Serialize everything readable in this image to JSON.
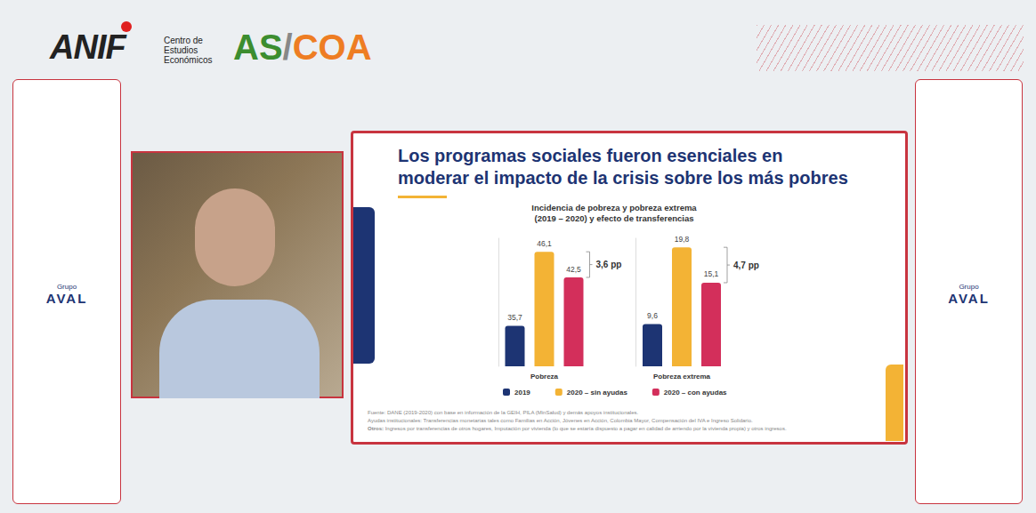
{
  "header": {
    "logo_anif": "ANIF",
    "anif_subtitle": [
      "Centro de",
      "Estudios",
      "Económicos"
    ],
    "logo_ascoa": "AS/COA"
  },
  "side_panels": [
    {
      "top": "Grupo",
      "main": "AVAL"
    },
    {
      "top": "Grupo",
      "main": "AVAL"
    }
  ],
  "slide": {
    "title": [
      "Los programas sociales fueron esenciales en",
      "moderar el impacto de la crisis sobre los más pobres"
    ],
    "chart_title": [
      "Incidencia de pobreza y pobreza extrema",
      "(2019 – 2020) y efecto de transferencias"
    ],
    "footnotes": [
      {
        "text": "Fuente: DANE (2019-2020) con base en información de la GEIH, PILA (MinSalud) y demás apoyos institucionales."
      },
      {
        "text": "Ayudas institucionales: Transferencias monetarias tales como Familias en Acción, Jóvenes en Acción, Colombia Mayor, Compensación del IVA e Ingreso Solidario."
      },
      {
        "lead": "Otros:",
        "text": "Ingresos por transferencias de otros hogares, Imputación por vivienda (lo que se estaría dispuesto a pagar en calidad de arriendo por la vivienda propia) y otros ingresos."
      }
    ]
  },
  "chart_data": [
    {
      "type": "bar",
      "categories": [
        "Pobreza"
      ],
      "series": [
        {
          "name": "2019",
          "color": "#1d3473",
          "values": [
            35.7
          ],
          "value_labels": [
            "35,7"
          ]
        },
        {
          "name": "2020 – sin ayudas",
          "color": "#f3b335",
          "values": [
            46.1
          ],
          "value_labels": [
            "46,1"
          ]
        },
        {
          "name": "2020 – con ayudas",
          "color": "#d32f5b",
          "values": [
            42.5
          ],
          "value_labels": [
            "42,5"
          ]
        }
      ],
      "ylim": [
        30,
        48
      ],
      "grid": false,
      "data_labels": true,
      "tick_labels": "x",
      "legend": "bottom",
      "annotations": [
        {
          "label": "3,6 pp",
          "value": 3.6,
          "between": [
            "2020 – sin ayudas",
            "2020 – con ayudas"
          ]
        }
      ]
    },
    {
      "type": "bar",
      "categories": [
        "Pobreza extrema"
      ],
      "series": [
        {
          "name": "2019",
          "color": "#1d3473",
          "values": [
            9.6
          ],
          "value_labels": [
            "9,6"
          ]
        },
        {
          "name": "2020 – sin ayudas",
          "color": "#f3b335",
          "values": [
            19.8
          ],
          "value_labels": [
            "19,8"
          ]
        },
        {
          "name": "2020 – con ayudas",
          "color": "#d32f5b",
          "values": [
            15.1
          ],
          "value_labels": [
            "15,1"
          ]
        }
      ],
      "ylim": [
        4,
        21
      ],
      "grid": false,
      "data_labels": true,
      "tick_labels": "x",
      "annotations": [
        {
          "label": "4,7 pp",
          "value": 4.7,
          "between": [
            "2020 – sin ayudas",
            "2020 – con ayudas"
          ]
        }
      ]
    }
  ]
}
